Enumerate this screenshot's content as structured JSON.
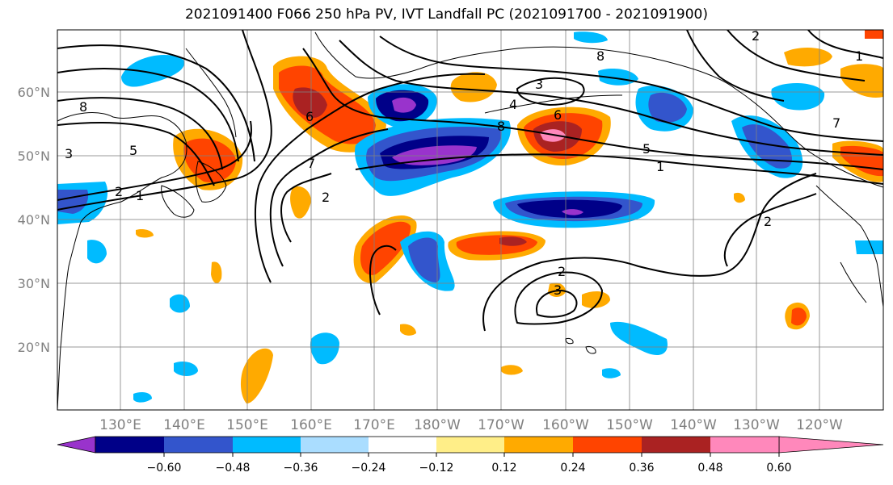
{
  "title": "2021091400 F066 250 hPa PV, IVT Landfall PC (2021091700 - 2021091900)",
  "lat_labels": [
    "60°N",
    "50°N",
    "40°N",
    "30°N",
    "20°N"
  ],
  "lon_labels": [
    "130°E",
    "140°E",
    "150°E",
    "160°E",
    "170°E",
    "180°W",
    "170°W",
    "160°W",
    "150°W",
    "140°W",
    "130°W",
    "120°W"
  ],
  "colorbar": {
    "colors": [
      "#9933cc",
      "#000088",
      "#3355cc",
      "#00bbff",
      "#aaddff",
      "#ffffff",
      "#ffee88",
      "#ffaa00",
      "#ff4400",
      "#aa2222",
      "#ff88bb"
    ],
    "tick_labels": [
      "−0.60",
      "−0.48",
      "−0.36",
      "−0.24",
      "−0.12",
      "0.12",
      "0.24",
      "0.36",
      "0.48",
      "0.60"
    ]
  },
  "contour_labels": [
    "8",
    "2",
    "1",
    "3",
    "5",
    "7",
    "6",
    "4",
    "2",
    "8",
    "3",
    "2",
    "3",
    "5",
    "1",
    "2",
    "6",
    "8",
    "1",
    "2",
    "7"
  ]
}
